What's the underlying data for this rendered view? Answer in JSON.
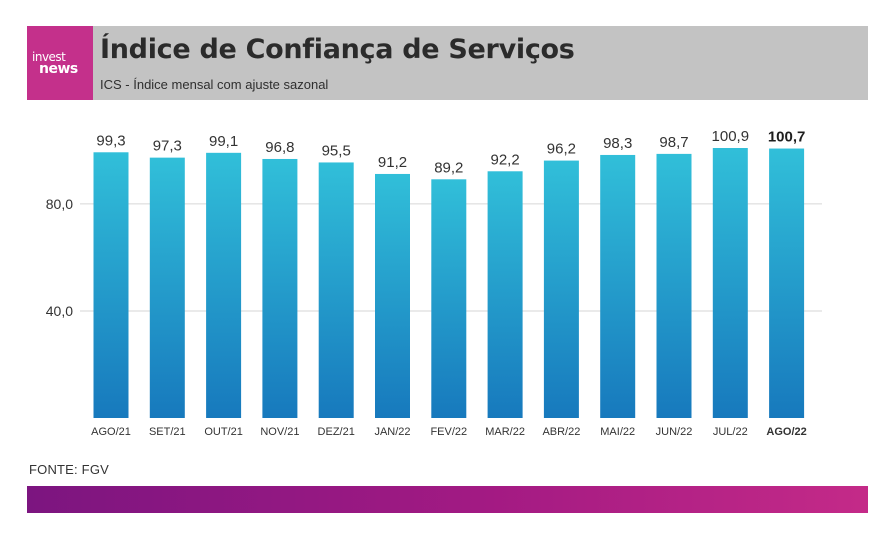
{
  "header": {
    "logo_top": "invest",
    "logo_bottom": "news",
    "title": "Índice de Confiança de Serviços",
    "subtitle": "ICS - Índice mensal com ajuste sazonal"
  },
  "footer": {
    "source": "FONTE: FGV"
  },
  "colors": {
    "bar_top": "#31bfd9",
    "bar_bottom": "#1779bd",
    "logo_bg": "#c4308b",
    "header_bg": "#c3c3c3",
    "footer_start": "#7c1580",
    "footer_end": "#c42a88"
  },
  "chart_data": {
    "type": "bar",
    "title": "",
    "xlabel": "",
    "ylabel": "",
    "categories": [
      "AGO/21",
      "SET/21",
      "OUT/21",
      "NOV/21",
      "DEZ/21",
      "JAN/22",
      "FEV/22",
      "MAR/22",
      "ABR/22",
      "MAI/22",
      "JUN/22",
      "JUL/22",
      "AGO/22"
    ],
    "values": [
      99.3,
      97.3,
      99.1,
      96.8,
      95.5,
      91.2,
      89.2,
      92.2,
      96.2,
      98.3,
      98.7,
      100.9,
      100.7
    ],
    "value_labels": [
      "99,3",
      "97,3",
      "99,1",
      "96,8",
      "95,5",
      "91,2",
      "89,2",
      "92,2",
      "96,2",
      "98,3",
      "98,7",
      "100,9",
      "100,7"
    ],
    "highlight_index": 12,
    "yticks": [
      40,
      80
    ],
    "ytick_labels": [
      "40,0",
      "80,0"
    ],
    "ylim": [
      0,
      100.9
    ],
    "grid": true,
    "legend": "none"
  }
}
